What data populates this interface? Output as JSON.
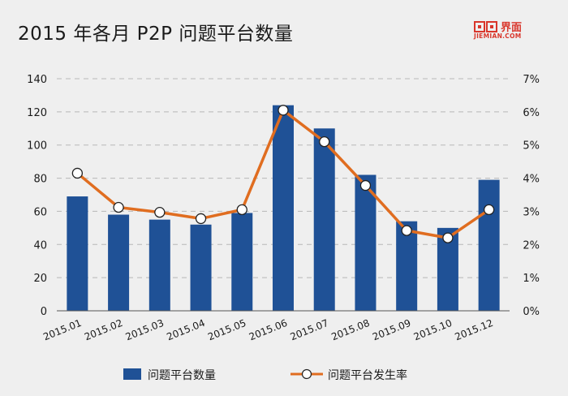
{
  "brand": {
    "name": "界面",
    "url": "JIEMIAN.COM"
  },
  "chart_data": {
    "type": "bar",
    "title": "2015 年各月 P2P 问题平台数量",
    "categories": [
      "2015.01",
      "2015.02",
      "2015.03",
      "2015.04",
      "2015.05",
      "2015.06",
      "2015.07",
      "2015.08",
      "2015.09",
      "2015.10",
      "2015.12"
    ],
    "series": [
      {
        "name": "问题平台数量",
        "type": "bar",
        "axis": "left",
        "color": "#1f5196",
        "values": [
          69,
          58,
          55,
          52,
          59,
          124,
          110,
          82,
          54,
          50,
          79
        ]
      },
      {
        "name": "问题平台发生率",
        "type": "line",
        "axis": "right",
        "color": "#e06d20",
        "values": [
          4.15,
          3.12,
          2.97,
          2.78,
          3.05,
          6.05,
          5.1,
          3.78,
          2.42,
          2.2,
          3.05
        ]
      }
    ],
    "y_left": {
      "ticks": [
        "0",
        "20",
        "40",
        "60",
        "80",
        "100",
        "120",
        "140"
      ],
      "ylim": [
        0,
        140
      ]
    },
    "y_right": {
      "ticks": [
        "0%",
        "1%",
        "2%",
        "3%",
        "4%",
        "5%",
        "6%",
        "7%"
      ],
      "ylim": [
        0,
        7
      ]
    },
    "xlabel": "",
    "ylabel": "",
    "grid": true,
    "legend_position": "bottom"
  }
}
